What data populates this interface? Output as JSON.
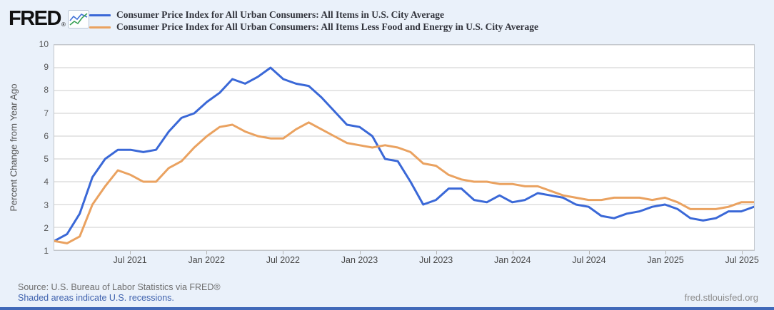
{
  "page": {
    "background_color": "#eaf1fa",
    "bottom_bar_color": "#4169b8"
  },
  "logo": {
    "text": "FRED",
    "reg": "®",
    "icon": "line-chart-icon"
  },
  "chart_data": {
    "type": "line",
    "title": "",
    "xlabel": "",
    "ylabel": "Percent Change from Year Ago",
    "units": "percent",
    "x_start": "2021-01",
    "x_end": "2025-08",
    "x_frequency": "monthly",
    "ylim": [
      1,
      10
    ],
    "yticks": [
      1,
      2,
      3,
      4,
      5,
      6,
      7,
      8,
      9,
      10
    ],
    "grid": true,
    "legend_position": "top-left",
    "xticks": [
      {
        "label": "Jul 2021",
        "month_index": 6
      },
      {
        "label": "Jan 2022",
        "month_index": 12
      },
      {
        "label": "Jul 2022",
        "month_index": 18
      },
      {
        "label": "Jan 2023",
        "month_index": 24
      },
      {
        "label": "Jul 2023",
        "month_index": 30
      },
      {
        "label": "Jan 2024",
        "month_index": 36
      },
      {
        "label": "Jul 2024",
        "month_index": 42
      },
      {
        "label": "Jan 2025",
        "month_index": 48
      },
      {
        "label": "Jul 2025",
        "month_index": 54
      }
    ],
    "series": [
      {
        "name": "Consumer Price Index for All Urban Consumers: All Items in U.S. City Average",
        "color": "#3a68d7",
        "values": [
          1.4,
          1.7,
          2.6,
          4.2,
          5.0,
          5.4,
          5.4,
          5.3,
          5.4,
          6.2,
          6.8,
          7.0,
          7.5,
          7.9,
          8.5,
          8.3,
          8.6,
          9.0,
          8.5,
          8.3,
          8.2,
          7.7,
          7.1,
          6.5,
          6.4,
          6.0,
          5.0,
          4.9,
          4.0,
          3.0,
          3.2,
          3.7,
          3.7,
          3.2,
          3.1,
          3.4,
          3.1,
          3.2,
          3.5,
          3.4,
          3.3,
          3.0,
          2.9,
          2.5,
          2.4,
          2.6,
          2.7,
          2.9,
          3.0,
          2.8,
          2.4,
          2.3,
          2.4,
          2.7,
          2.7,
          2.9
        ]
      },
      {
        "name": "Consumer Price Index for All Urban Consumers: All Items Less Food and Energy in U.S. City Average",
        "color": "#eaa260",
        "values": [
          1.4,
          1.3,
          1.6,
          3.0,
          3.8,
          4.5,
          4.3,
          4.0,
          4.0,
          4.6,
          4.9,
          5.5,
          6.0,
          6.4,
          6.5,
          6.2,
          6.0,
          5.9,
          5.9,
          6.3,
          6.6,
          6.3,
          6.0,
          5.7,
          5.6,
          5.5,
          5.6,
          5.5,
          5.3,
          4.8,
          4.7,
          4.3,
          4.1,
          4.0,
          4.0,
          3.9,
          3.9,
          3.8,
          3.8,
          3.6,
          3.4,
          3.3,
          3.2,
          3.2,
          3.3,
          3.3,
          3.3,
          3.2,
          3.3,
          3.1,
          2.8,
          2.8,
          2.8,
          2.9,
          3.1,
          3.1
        ]
      }
    ]
  },
  "footer": {
    "source": "Source: U.S. Bureau of Labor Statistics via FRED®",
    "recessions_note": "Shaded areas indicate U.S. recessions.",
    "site": "fred.stlouisfed.org",
    "link_color": "#3f62ae"
  }
}
